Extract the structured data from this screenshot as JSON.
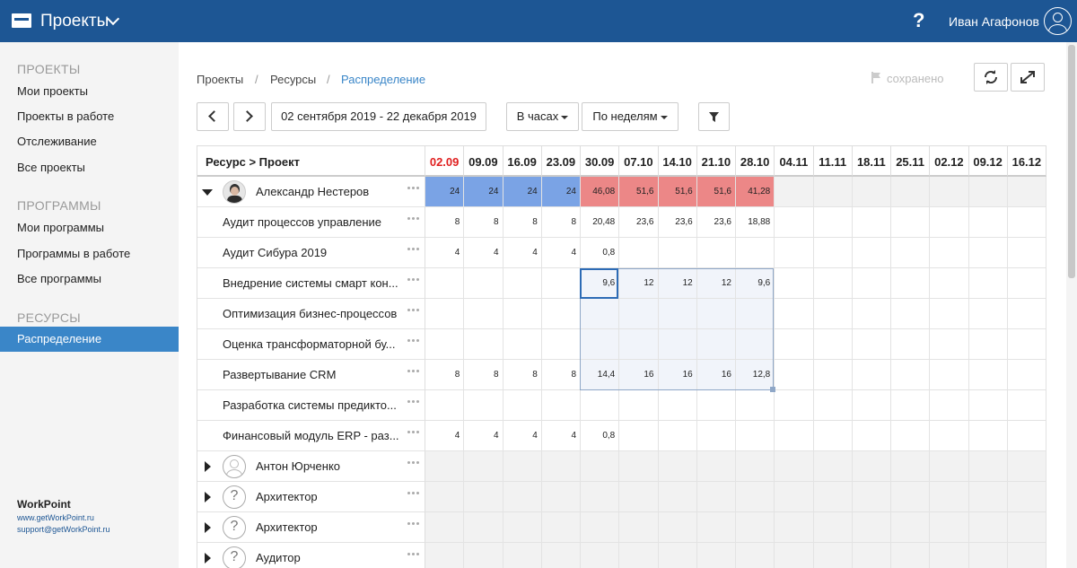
{
  "topbar": {
    "app_title": "Проекты",
    "help": "?",
    "user_name": "Иван Агафонов"
  },
  "sidebar": {
    "projects_header": "ПРОЕКТЫ",
    "projects": [
      "Мои проекты",
      "Проекты в работе",
      "Отслеживание",
      "Все проекты"
    ],
    "programs_header": "ПРОГРАММЫ",
    "programs": [
      "Мои программы",
      "Программы в работе",
      "Все программы"
    ],
    "resources_header": "РЕСУРСЫ",
    "resources_active": "Распределение",
    "brand": "WorkPoint",
    "site": "www.getWorkPoint.ru",
    "email": "support@getWorkPoint.ru"
  },
  "breadcrumb": {
    "items": [
      "Проекты",
      "Ресурсы",
      "Распределение"
    ],
    "sep": "/"
  },
  "toolbar": {
    "saved": "сохранено",
    "date_range": "02 сентября 2019 - 22 декабря 2019",
    "units": "В часах",
    "period": "По неделям"
  },
  "grid": {
    "first_header": "Ресурс > Проект",
    "weeks": [
      "02.09",
      "09.09",
      "16.09",
      "23.09",
      "30.09",
      "07.10",
      "14.10",
      "21.10",
      "28.10",
      "04.11",
      "11.11",
      "18.11",
      "25.11",
      "02.12",
      "09.12",
      "16.12"
    ],
    "current_week_index": 0,
    "rows": [
      {
        "name": "Александр Нестеров",
        "type": "resource",
        "expanded": true,
        "avatar": "photo",
        "values": [
          "24",
          "24",
          "24",
          "24",
          "46,08",
          "51,6",
          "51,6",
          "51,6",
          "41,28",
          "",
          "",
          "",
          "",
          "",
          "",
          ""
        ]
      },
      {
        "name": "Аудит процессов управление",
        "type": "project",
        "values": [
          "8",
          "8",
          "8",
          "8",
          "20,48",
          "23,6",
          "23,6",
          "23,6",
          "18,88",
          "",
          "",
          "",
          "",
          "",
          "",
          ""
        ]
      },
      {
        "name": "Аудит Сибура 2019",
        "type": "project",
        "values": [
          "4",
          "4",
          "4",
          "4",
          "0,8",
          "",
          "",
          "",
          "",
          "",
          "",
          "",
          "",
          "",
          "",
          ""
        ]
      },
      {
        "name": "Внедрение системы смарт кон...",
        "type": "project",
        "values": [
          "",
          "",
          "",
          "",
          "9,6",
          "12",
          "12",
          "12",
          "9,6",
          "",
          "",
          "",
          "",
          "",
          "",
          ""
        ]
      },
      {
        "name": "Оптимизация бизнес-процессов",
        "type": "project",
        "values": [
          "",
          "",
          "",
          "",
          "",
          "",
          "",
          "",
          "",
          "",
          "",
          "",
          "",
          "",
          "",
          ""
        ]
      },
      {
        "name": "Оценка трансформаторной бу...",
        "type": "project",
        "values": [
          "",
          "",
          "",
          "",
          "",
          "",
          "",
          "",
          "",
          "",
          "",
          "",
          "",
          "",
          "",
          ""
        ]
      },
      {
        "name": "Развертывание CRM",
        "type": "project",
        "values": [
          "8",
          "8",
          "8",
          "8",
          "14,4",
          "16",
          "16",
          "16",
          "12,8",
          "",
          "",
          "",
          "",
          "",
          "",
          ""
        ]
      },
      {
        "name": "Разработка системы предикто...",
        "type": "project",
        "values": [
          "",
          "",
          "",
          "",
          "",
          "",
          "",
          "",
          "",
          "",
          "",
          "",
          "",
          "",
          "",
          ""
        ]
      },
      {
        "name": "Финансовый модуль ERP - раз...",
        "type": "project",
        "values": [
          "4",
          "4",
          "4",
          "4",
          "0,8",
          "",
          "",
          "",
          "",
          "",
          "",
          "",
          "",
          "",
          "",
          ""
        ]
      },
      {
        "name": "Антон Юрченко",
        "type": "resource",
        "expanded": false,
        "avatar": "user",
        "values": [
          "",
          "",
          "",
          "",
          "",
          "",
          "",
          "",
          "",
          "",
          "",
          "",
          "",
          "",
          "",
          ""
        ]
      },
      {
        "name": "Архитектор",
        "type": "resource",
        "expanded": false,
        "avatar": "?",
        "values": [
          "",
          "",
          "",
          "",
          "",
          "",
          "",
          "",
          "",
          "",
          "",
          "",
          "",
          "",
          "",
          ""
        ]
      },
      {
        "name": "Архитектор",
        "type": "resource",
        "expanded": false,
        "avatar": "?",
        "values": [
          "",
          "",
          "",
          "",
          "",
          "",
          "",
          "",
          "",
          "",
          "",
          "",
          "",
          "",
          "",
          ""
        ]
      },
      {
        "name": "Аудитор",
        "type": "resource",
        "expanded": false,
        "avatar": "?",
        "values": [
          "",
          "",
          "",
          "",
          "",
          "",
          "",
          "",
          "",
          "",
          "",
          "",
          "",
          "",
          "",
          ""
        ]
      }
    ]
  },
  "colors": {
    "topbar": "#1d5694",
    "active_nav": "#3a86c8",
    "normal_load": "#7aa3e5",
    "overload": "#ec8787",
    "current_week": "#e02020"
  },
  "icons": [
    "logo-icon",
    "chevron-down-icon",
    "help-icon",
    "user-avatar-icon",
    "flag-icon",
    "refresh-icon",
    "fullscreen-icon",
    "arrow-left-icon",
    "arrow-right-icon",
    "filter-icon",
    "more-dots-icon",
    "expand-triangle-icon"
  ]
}
